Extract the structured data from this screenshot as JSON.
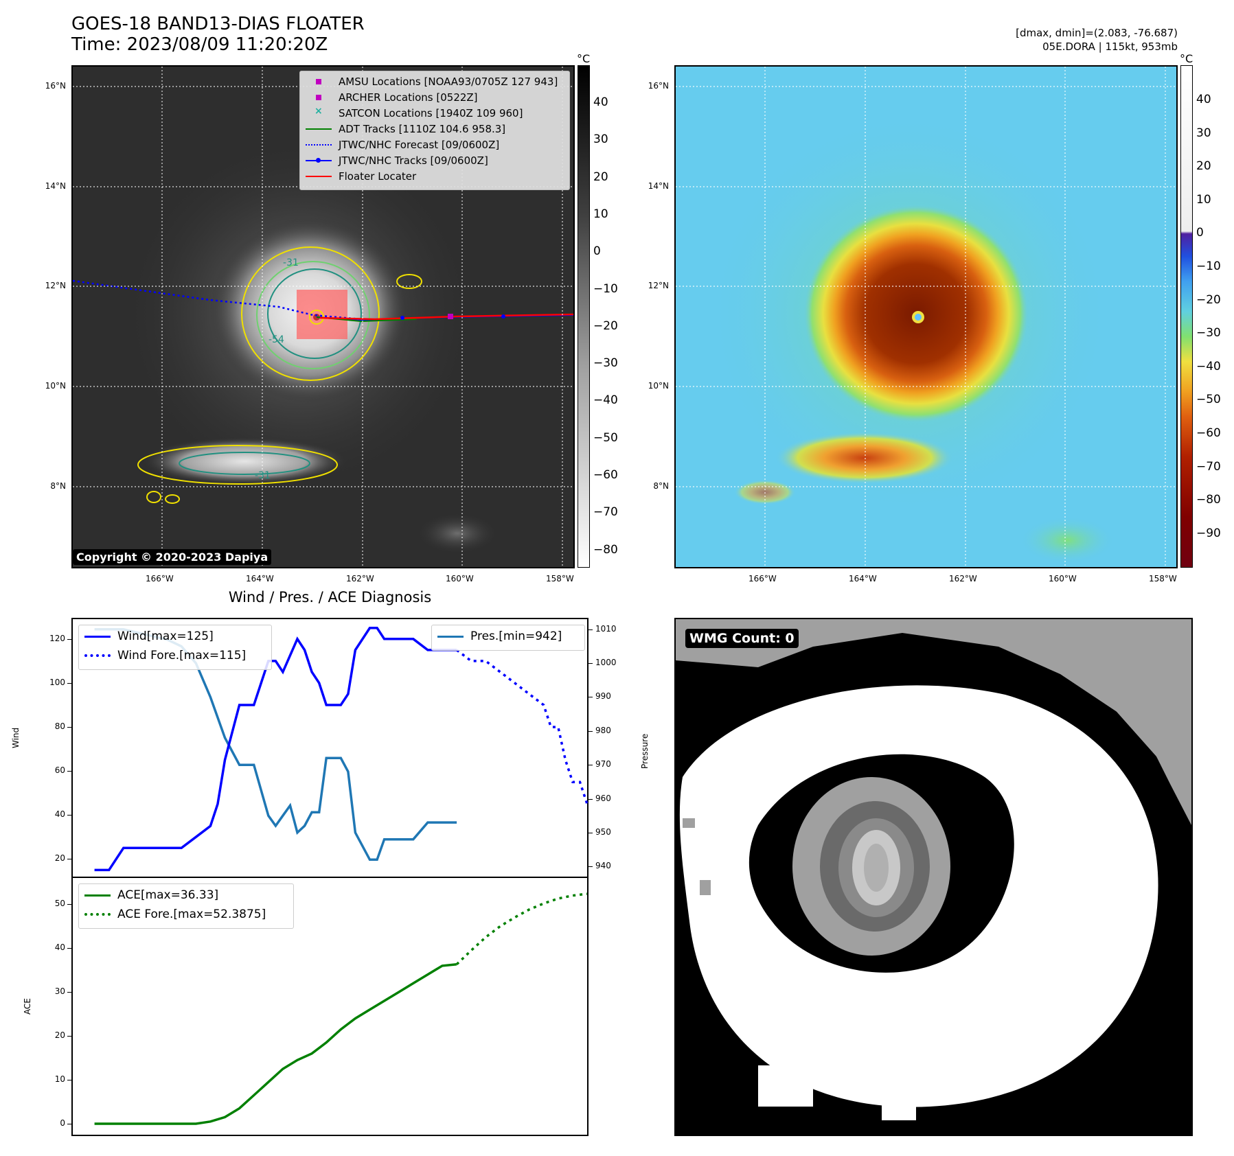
{
  "header": {
    "title_line1": "GOES-18 BAND13-DIAS FLOATER",
    "title_line2": "Time: 2023/08/09 11:20:20Z",
    "dmax_dmin": "[dmax, dmin]=(2.083, -76.687)",
    "storm_info": "05E.DORA | 115kt, 953mb"
  },
  "map": {
    "lat_labels": [
      "16°N",
      "14°N",
      "12°N",
      "10°N",
      "8°N"
    ],
    "lon_labels": [
      "166°W",
      "164°W",
      "162°W",
      "160°W",
      "158°W"
    ],
    "copyright": "Copyright © 2020-2023 Dapiya",
    "colorbar_unit": "°C",
    "gray_colorbar_ticks": [
      "40",
      "30",
      "20",
      "10",
      "0",
      "−10",
      "−20",
      "−30",
      "−40",
      "−50",
      "−60",
      "−70",
      "−80"
    ],
    "color_colorbar_ticks": [
      "40",
      "30",
      "20",
      "10",
      "0",
      "−10",
      "−20",
      "−30",
      "−40",
      "−50",
      "−60",
      "−70",
      "−80",
      "−90"
    ],
    "contour_labels": [
      "-31",
      "-54",
      "-31"
    ],
    "legend": [
      {
        "label": "AMSU Locations [NOAA93/0705Z 127 943]",
        "color": "#c000c0",
        "symbol": "square"
      },
      {
        "label": "ARCHER Locations [0522Z]",
        "color": "#c000c0",
        "symbol": "square"
      },
      {
        "label": "SATCON Locations [1940Z 109 960]",
        "color": "#20b0a0",
        "symbol": "x"
      },
      {
        "label": "ADT Tracks [1110Z 104.6 958.3]",
        "color": "#008000",
        "symbol": "line"
      },
      {
        "label": "JTWC/NHC Forecast [09/0600Z]",
        "color": "#0000ff",
        "symbol": "dotted"
      },
      {
        "label": "JTWC/NHC Tracks [09/0600Z]",
        "color": "#0000ff",
        "symbol": "line-dot"
      },
      {
        "label": "Floater Locater",
        "color": "#ff0000",
        "symbol": "line"
      }
    ]
  },
  "diagnosis": {
    "title": "Wind / Pres. / ACE Diagnosis",
    "wind_axis_label": "Wind",
    "pressure_axis_label": "Pressure",
    "ace_axis_label": "ACE",
    "wind_legend": [
      "Wind[max=125]",
      "Wind Fore.[max=115]"
    ],
    "pres_legend": "Pres.[min=942]",
    "ace_legend": [
      "ACE[max=36.33]",
      "ACE Fore.[max=52.3875]"
    ],
    "wind_ticks": [
      "120",
      "100",
      "80",
      "60",
      "40",
      "20"
    ],
    "pres_ticks": [
      "1010",
      "1000",
      "990",
      "980",
      "970",
      "960",
      "950",
      "940"
    ],
    "ace_ticks": [
      "50",
      "40",
      "30",
      "20",
      "10",
      "0"
    ]
  },
  "wmg": {
    "label": "WMG Count: 0"
  },
  "chart_data": [
    {
      "type": "line",
      "title": "Wind / Pres. / ACE Diagnosis",
      "ylabel": "Wind",
      "ylim": [
        12,
        129
      ],
      "xlim": [
        -1.5,
        34
      ],
      "series": [
        {
          "name": "Wind[max=125]",
          "x": [
            0,
            1,
            2,
            3,
            4,
            5,
            6,
            7,
            8,
            8.5,
            9,
            10,
            11,
            12,
            12.5,
            13,
            14,
            14.5,
            15,
            15.5,
            16,
            17,
            17.5,
            18,
            19,
            19.5,
            20,
            21,
            22,
            23,
            24,
            25
          ],
          "values": [
            15,
            15,
            25,
            25,
            25,
            25,
            25,
            30,
            35,
            45,
            65,
            90,
            90,
            110,
            110,
            105,
            120,
            115,
            105,
            100,
            90,
            90,
            95,
            115,
            125,
            125,
            120,
            120,
            120,
            115,
            115,
            115
          ]
        },
        {
          "name": "Wind Fore.[max=115]",
          "x": [
            25,
            26,
            27,
            28,
            29,
            30,
            31,
            31.5,
            32,
            32.5,
            33,
            33.5,
            34
          ],
          "values": [
            115,
            110,
            110,
            105,
            100,
            95,
            90,
            80,
            80,
            65,
            55,
            55,
            45
          ]
        }
      ],
      "secondary": {
        "ylabel": "Pressure",
        "ylim": [
          937,
          1013
        ],
        "series": [
          {
            "name": "Pres.[min=942]",
            "x": [
              0,
              1,
              2,
              3,
              4,
              5,
              6,
              7,
              8,
              9,
              10,
              11,
              12,
              12.5,
              13,
              13.5,
              14,
              14.5,
              15,
              15.5,
              16,
              17,
              17.5,
              18,
              19,
              19.5,
              20,
              21,
              22,
              23,
              24,
              25
            ],
            "values": [
              1010,
              1010,
              1010,
              1009,
              1008,
              1007,
              1005,
              1000,
              990,
              978,
              970,
              970,
              955,
              952,
              955,
              958,
              950,
              952,
              956,
              956,
              972,
              972,
              968,
              950,
              942,
              942,
              948,
              948,
              948,
              953,
              953,
              953
            ]
          }
        ]
      }
    },
    {
      "type": "line",
      "ylabel": "ACE",
      "ylim": [
        -2.5,
        56
      ],
      "xlim": [
        -1.5,
        34
      ],
      "series": [
        {
          "name": "ACE[max=36.33]",
          "x": [
            0,
            2,
            4,
            6,
            7,
            8,
            9,
            10,
            11,
            12,
            13,
            14,
            15,
            16,
            17,
            18,
            19,
            20,
            21,
            22,
            23,
            24,
            25
          ],
          "values": [
            0,
            0,
            0,
            0,
            0,
            0.5,
            1.5,
            3.5,
            6.5,
            9.5,
            12.5,
            14.5,
            16,
            18.5,
            21.5,
            24,
            26,
            28,
            30,
            32,
            34,
            36,
            36.33
          ]
        },
        {
          "name": "ACE Fore.[max=52.3875]",
          "x": [
            25,
            26,
            27,
            28,
            29,
            30,
            31,
            32,
            33,
            34
          ],
          "values": [
            36.33,
            39.5,
            42.5,
            45,
            47,
            48.8,
            50.2,
            51.3,
            52,
            52.3875
          ]
        }
      ]
    }
  ]
}
